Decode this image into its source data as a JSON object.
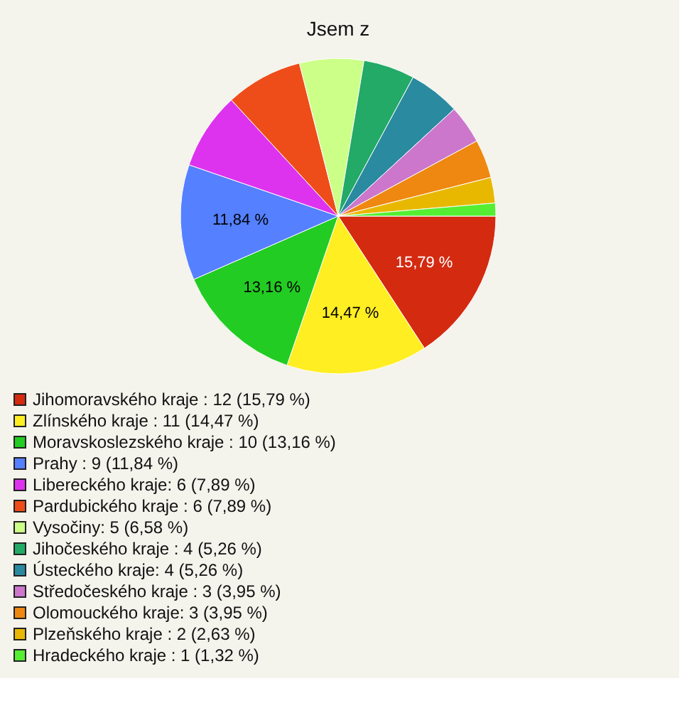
{
  "chart_data": {
    "type": "pie",
    "title": "Jsem z",
    "categories": [
      "Jihomoravského kraje : 12 (15,79 %)",
      "Zlínského kraje : 11 (14,47 %)",
      "Moravskoslezského kraje : 10 (13,16 %)",
      "Prahy : 9 (11,84 %)",
      "Libereckého kraje: 6 (7,89 %)",
      "Pardubického kraje : 6 (7,89 %)",
      "Vysočiny: 5 (6,58 %)",
      "Jihočeského kraje : 4 (5,26 %)",
      "Ústeckého kraje: 4 (5,26 %)",
      "Středočeského kraje : 3 (3,95 %)",
      "Olomouckého kraje: 3 (3,95 %)",
      "Plzeňského kraje : 2 (2,63 %)",
      "Hradeckého kraje : 1 (1,32 %)"
    ],
    "values": [
      15.79,
      14.47,
      13.16,
      11.84,
      7.89,
      7.89,
      6.58,
      5.26,
      5.26,
      3.95,
      3.95,
      2.63,
      1.32
    ],
    "colors": [
      "#d42a10",
      "#ffee22",
      "#22cc22",
      "#5580ff",
      "#dd33ee",
      "#ee4d1a",
      "#ccff88",
      "#22aa66",
      "#2a8aa0",
      "#cc77cc",
      "#ee8811",
      "#e8b800",
      "#55ee33"
    ],
    "value_labels": [
      "15,79 %",
      "14,47 %",
      "13,16 %",
      "11,84 %",
      null,
      null,
      null,
      null,
      null,
      null,
      null,
      null,
      null
    ],
    "legend": "bottom"
  }
}
